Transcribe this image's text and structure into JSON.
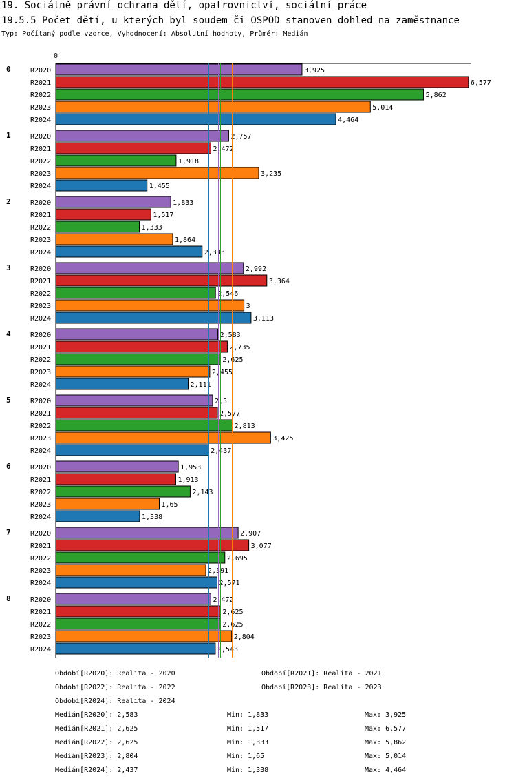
{
  "title_line1": "19. Sociálně právní ochrana dětí, opatrovnictví, sociální práce",
  "title_line2": "19.5.5 Počet dětí, u kterých byl soudem či OSPOD stanoven dohled na zaměstnance",
  "subtitle": "Typ: Počítaný podle vzorce, Vyhodnocení: Absolutní hodnoty, Průměr: Medián",
  "colors": {
    "R2020": "#9467bd",
    "R2021": "#d62728",
    "R2022": "#2ca02c",
    "R2023": "#ff7f0e",
    "R2024": "#1f77b4"
  },
  "chart_data": {
    "type": "bar",
    "orientation": "horizontal",
    "axis_zero_label": "0",
    "xlim": [
      0,
      6.6
    ],
    "categories": [
      "0",
      "1",
      "2",
      "3",
      "4",
      "5",
      "6",
      "7",
      "8"
    ],
    "series": [
      {
        "name": "R2020",
        "values": [
          3.925,
          2.757,
          1.833,
          2.992,
          2.583,
          2.5,
          1.953,
          2.907,
          2.472
        ],
        "labels": [
          "3,925",
          "2,757",
          "1,833",
          "2,992",
          "2,583",
          "2,5",
          "1,953",
          "2,907",
          "2,472"
        ]
      },
      {
        "name": "R2021",
        "values": [
          6.577,
          2.472,
          1.517,
          3.364,
          2.735,
          2.577,
          1.913,
          3.077,
          2.625
        ],
        "labels": [
          "6,577",
          "2,472",
          "1,517",
          "3,364",
          "2,735",
          "2,577",
          "1,913",
          "3,077",
          "2,625"
        ]
      },
      {
        "name": "R2022",
        "values": [
          5.862,
          1.918,
          1.333,
          2.546,
          2.625,
          2.813,
          2.143,
          2.695,
          2.625
        ],
        "labels": [
          "5,862",
          "1,918",
          "1,333",
          "2,546",
          "2,625",
          "2,813",
          "2,143",
          "2,695",
          "2,625"
        ]
      },
      {
        "name": "R2023",
        "values": [
          5.014,
          3.235,
          1.864,
          3,
          2.455,
          3.425,
          1.65,
          2.391,
          2.804
        ],
        "labels": [
          "5,014",
          "3,235",
          "1,864",
          "3",
          "2,455",
          "3,425",
          "1,65",
          "2,391",
          "2,804"
        ]
      },
      {
        "name": "R2024",
        "values": [
          4.464,
          1.455,
          2.333,
          3.113,
          2.111,
          2.437,
          1.338,
          2.571,
          2.543
        ],
        "labels": [
          "4,464",
          "1,455",
          "2,333",
          "3,113",
          "2,111",
          "2,437",
          "1,338",
          "2,571",
          "2,543"
        ]
      }
    ],
    "median_lines": [
      {
        "series": "R2020",
        "value": 2.583
      },
      {
        "series": "R2021",
        "value": 2.625
      },
      {
        "series": "R2022",
        "value": 2.625
      },
      {
        "series": "R2023",
        "value": 2.804
      },
      {
        "series": "R2024",
        "value": 2.437
      }
    ]
  },
  "legend_periods": [
    "Období[R2020]: Realita - 2020",
    "Období[R2021]: Realita - 2021",
    "Období[R2022]: Realita - 2022",
    "Období[R2023]: Realita - 2023",
    "Období[R2024]: Realita - 2024"
  ],
  "stats": [
    {
      "median": "Medián[R2020]: 2,583",
      "min": "Min: 1,833",
      "max": "Max: 3,925"
    },
    {
      "median": "Medián[R2021]: 2,625",
      "min": "Min: 1,517",
      "max": "Max: 6,577"
    },
    {
      "median": "Medián[R2022]: 2,625",
      "min": "Min: 1,333",
      "max": "Max: 5,862"
    },
    {
      "median": "Medián[R2023]: 2,804",
      "min": "Min: 1,65",
      "max": "Max: 5,014"
    },
    {
      "median": "Medián[R2024]: 2,437",
      "min": "Min: 1,338",
      "max": "Max: 4,464"
    }
  ]
}
